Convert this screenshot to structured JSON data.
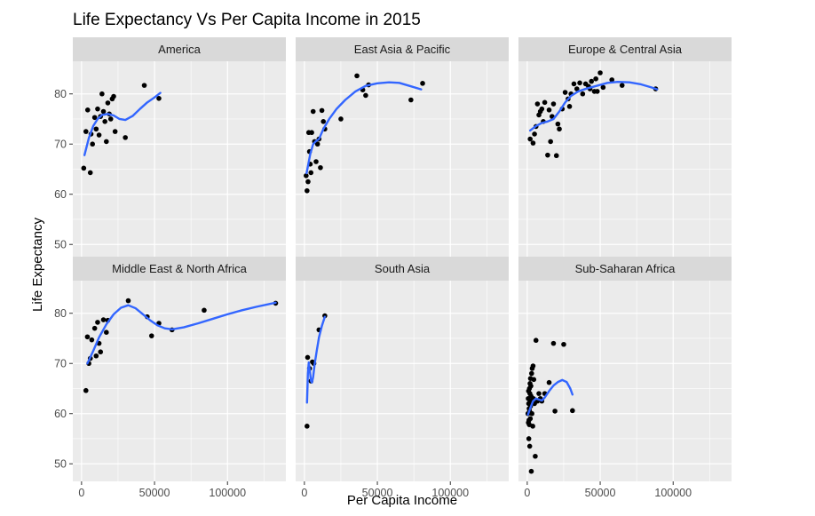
{
  "chart_data": {
    "type": "scatter",
    "title": "Life Expectancy Vs Per Capita Income in 2015",
    "xlabel": "Per Capita Income",
    "ylabel": "Life Expectancy",
    "xlim": [
      -6000,
      140000
    ],
    "ylim": [
      46.5,
      86.5
    ],
    "x_ticks": [
      0,
      50000,
      100000
    ],
    "x_tick_labels": [
      "0",
      "50000",
      "100000"
    ],
    "y_ticks": [
      50,
      60,
      70,
      80
    ],
    "y_tick_labels": [
      "50",
      "60",
      "70",
      "80"
    ],
    "grid": true,
    "smooth_color": "#3366ff",
    "point_color": "#000000",
    "panel_background": "#ebebeb",
    "strip_background": "#d9d9d9",
    "facets": [
      {
        "name": "America",
        "points": [
          [
            1500,
            65.2
          ],
          [
            3000,
            72.5
          ],
          [
            4200,
            76.8
          ],
          [
            6000,
            64.3
          ],
          [
            6500,
            72.0
          ],
          [
            7500,
            70.0
          ],
          [
            9000,
            75.3
          ],
          [
            10000,
            73.0
          ],
          [
            11000,
            77.0
          ],
          [
            12000,
            71.8
          ],
          [
            13000,
            75.5
          ],
          [
            14000,
            80.0
          ],
          [
            15000,
            76.5
          ],
          [
            16000,
            74.5
          ],
          [
            17000,
            70.5
          ],
          [
            18000,
            78.2
          ],
          [
            19000,
            76.0
          ],
          [
            20000,
            75.0
          ],
          [
            21000,
            79.0
          ],
          [
            22000,
            79.5
          ],
          [
            23000,
            72.5
          ],
          [
            30000,
            71.3
          ],
          [
            43000,
            81.7
          ],
          [
            53000,
            79.1
          ]
        ],
        "smooth": [
          [
            2000,
            67.8
          ],
          [
            5000,
            71.2
          ],
          [
            8000,
            73.6
          ],
          [
            11000,
            75.0
          ],
          [
            14000,
            75.8
          ],
          [
            18000,
            76.0
          ],
          [
            22000,
            75.7
          ],
          [
            26000,
            75.0
          ],
          [
            30000,
            74.8
          ],
          [
            35000,
            75.6
          ],
          [
            40000,
            77.0
          ],
          [
            45000,
            78.3
          ],
          [
            50000,
            79.3
          ],
          [
            54000,
            80.2
          ]
        ]
      },
      {
        "name": "East Asia & Pacific",
        "points": [
          [
            1200,
            63.7
          ],
          [
            1800,
            60.7
          ],
          [
            2500,
            62.5
          ],
          [
            3000,
            72.3
          ],
          [
            3500,
            68.5
          ],
          [
            4000,
            66.0
          ],
          [
            4500,
            64.3
          ],
          [
            5000,
            72.3
          ],
          [
            6000,
            76.5
          ],
          [
            7000,
            70.5
          ],
          [
            8000,
            66.5
          ],
          [
            9000,
            70.0
          ],
          [
            10000,
            71.0
          ],
          [
            11000,
            65.3
          ],
          [
            12000,
            76.7
          ],
          [
            13000,
            74.5
          ],
          [
            14000,
            73.0
          ],
          [
            25000,
            75.0
          ],
          [
            36000,
            83.6
          ],
          [
            40000,
            80.8
          ],
          [
            42000,
            79.7
          ],
          [
            44000,
            81.8
          ],
          [
            73000,
            78.8
          ],
          [
            81000,
            82.1
          ]
        ],
        "smooth": [
          [
            1500,
            64.2
          ],
          [
            4000,
            68.0
          ],
          [
            6000,
            70.0
          ],
          [
            8000,
            70.6
          ],
          [
            10000,
            71.0
          ],
          [
            13000,
            73.0
          ],
          [
            17000,
            75.0
          ],
          [
            22000,
            77.0
          ],
          [
            28000,
            78.8
          ],
          [
            35000,
            80.5
          ],
          [
            42000,
            81.6
          ],
          [
            50000,
            82.1
          ],
          [
            58000,
            82.3
          ],
          [
            65000,
            82.2
          ],
          [
            72000,
            81.6
          ],
          [
            80000,
            80.9
          ]
        ]
      },
      {
        "name": "Europe & Central Asia",
        "points": [
          [
            2000,
            71.0
          ],
          [
            4000,
            70.2
          ],
          [
            5000,
            72.0
          ],
          [
            6000,
            73.5
          ],
          [
            7000,
            78.0
          ],
          [
            8000,
            75.8
          ],
          [
            9000,
            76.5
          ],
          [
            10000,
            77.0
          ],
          [
            11000,
            74.5
          ],
          [
            12000,
            78.3
          ],
          [
            14000,
            67.8
          ],
          [
            15000,
            76.8
          ],
          [
            16000,
            70.5
          ],
          [
            17000,
            75.5
          ],
          [
            18000,
            78.0
          ],
          [
            20000,
            67.7
          ],
          [
            21000,
            74.0
          ],
          [
            22000,
            73.0
          ],
          [
            24000,
            77.0
          ],
          [
            26000,
            80.3
          ],
          [
            28000,
            79.0
          ],
          [
            29000,
            77.5
          ],
          [
            30000,
            80.0
          ],
          [
            32000,
            82.0
          ],
          [
            34000,
            81.0
          ],
          [
            36000,
            82.2
          ],
          [
            38000,
            80.0
          ],
          [
            40000,
            82.0
          ],
          [
            42000,
            81.5
          ],
          [
            43000,
            81.0
          ],
          [
            44000,
            82.5
          ],
          [
            46000,
            80.5
          ],
          [
            47000,
            83.0
          ],
          [
            48000,
            80.5
          ],
          [
            50000,
            84.2
          ],
          [
            52000,
            81.3
          ],
          [
            58000,
            82.8
          ],
          [
            65000,
            81.7
          ],
          [
            88000,
            81.0
          ]
        ],
        "smooth": [
          [
            2000,
            72.7
          ],
          [
            6000,
            73.6
          ],
          [
            10000,
            74.2
          ],
          [
            14000,
            74.5
          ],
          [
            18000,
            75.0
          ],
          [
            22000,
            76.5
          ],
          [
            26000,
            78.3
          ],
          [
            30000,
            79.6
          ],
          [
            35000,
            80.5
          ],
          [
            40000,
            81.0
          ],
          [
            45000,
            81.4
          ],
          [
            50000,
            81.8
          ],
          [
            55000,
            82.2
          ],
          [
            62000,
            82.4
          ],
          [
            70000,
            82.3
          ],
          [
            78000,
            81.9
          ],
          [
            85000,
            81.3
          ],
          [
            89000,
            80.9
          ]
        ]
      },
      {
        "name": "Middle East & North Africa",
        "points": [
          [
            3000,
            64.6
          ],
          [
            4000,
            75.3
          ],
          [
            5000,
            70.0
          ],
          [
            6000,
            71.0
          ],
          [
            7000,
            74.7
          ],
          [
            9000,
            77.0
          ],
          [
            10000,
            71.5
          ],
          [
            11000,
            78.2
          ],
          [
            12000,
            74.0
          ],
          [
            13000,
            72.3
          ],
          [
            15000,
            78.7
          ],
          [
            17000,
            76.2
          ],
          [
            18000,
            78.6
          ],
          [
            32000,
            82.5
          ],
          [
            45000,
            79.3
          ],
          [
            48000,
            75.5
          ],
          [
            53000,
            78.0
          ],
          [
            62000,
            76.7
          ],
          [
            84000,
            80.6
          ],
          [
            133000,
            82.0
          ]
        ],
        "smooth": [
          [
            4000,
            70.0
          ],
          [
            8000,
            72.5
          ],
          [
            12000,
            75.2
          ],
          [
            17000,
            77.8
          ],
          [
            22000,
            79.8
          ],
          [
            27000,
            81.1
          ],
          [
            32000,
            81.6
          ],
          [
            37000,
            81.0
          ],
          [
            42000,
            79.8
          ],
          [
            47000,
            78.6
          ],
          [
            52000,
            77.6
          ],
          [
            57000,
            77.0
          ],
          [
            62000,
            76.8
          ],
          [
            70000,
            77.2
          ],
          [
            80000,
            78.0
          ],
          [
            90000,
            78.9
          ],
          [
            100000,
            79.8
          ],
          [
            110000,
            80.6
          ],
          [
            120000,
            81.3
          ],
          [
            133000,
            82.1
          ]
        ]
      },
      {
        "name": "South Asia",
        "points": [
          [
            1800,
            57.5
          ],
          [
            2200,
            71.2
          ],
          [
            3500,
            69.0
          ],
          [
            4500,
            66.5
          ],
          [
            5500,
            70.3
          ],
          [
            6500,
            70.0
          ],
          [
            10000,
            76.7
          ],
          [
            14000,
            79.5
          ]
        ],
        "smooth": [
          [
            1800,
            62.2
          ],
          [
            2400,
            68.0
          ],
          [
            3000,
            70.2
          ],
          [
            3800,
            68.4
          ],
          [
            4500,
            66.5
          ],
          [
            5200,
            66.2
          ],
          [
            6000,
            67.3
          ],
          [
            7000,
            69.8
          ],
          [
            8500,
            72.6
          ],
          [
            10000,
            75.2
          ],
          [
            12000,
            77.5
          ],
          [
            14000,
            79.3
          ]
        ]
      },
      {
        "name": "Sub-Saharan Africa",
        "points": [
          [
            500,
            60.0
          ],
          [
            700,
            63.0
          ],
          [
            800,
            58.2
          ],
          [
            900,
            64.5
          ],
          [
            1000,
            62.0
          ],
          [
            1100,
            55.0
          ],
          [
            1200,
            58.7
          ],
          [
            1300,
            61.0
          ],
          [
            1400,
            57.8
          ],
          [
            1500,
            65.0
          ],
          [
            1600,
            60.5
          ],
          [
            1700,
            53.5
          ],
          [
            1800,
            64.0
          ],
          [
            1900,
            66.0
          ],
          [
            2000,
            62.5
          ],
          [
            2100,
            59.0
          ],
          [
            2200,
            67.0
          ],
          [
            2300,
            61.5
          ],
          [
            2500,
            65.5
          ],
          [
            2600,
            63.5
          ],
          [
            2800,
            48.5
          ],
          [
            3000,
            68.0
          ],
          [
            3200,
            60.0
          ],
          [
            3400,
            69.0
          ],
          [
            3600,
            62.3
          ],
          [
            3800,
            57.5
          ],
          [
            4000,
            69.5
          ],
          [
            4200,
            63.0
          ],
          [
            4500,
            66.8
          ],
          [
            5000,
            62.0
          ],
          [
            5500,
            51.5
          ],
          [
            6000,
            74.6
          ],
          [
            7000,
            62.5
          ],
          [
            8000,
            64.0
          ],
          [
            9000,
            63.0
          ],
          [
            10000,
            62.5
          ],
          [
            12000,
            64.0
          ],
          [
            15000,
            66.2
          ],
          [
            18000,
            74.0
          ],
          [
            19000,
            60.5
          ],
          [
            25000,
            73.8
          ],
          [
            31000,
            60.6
          ]
        ],
        "smooth": [
          [
            500,
            59.8
          ],
          [
            2000,
            61.0
          ],
          [
            4000,
            62.5
          ],
          [
            6000,
            63.0
          ],
          [
            8000,
            62.8
          ],
          [
            10000,
            62.6
          ],
          [
            12000,
            63.2
          ],
          [
            15000,
            64.5
          ],
          [
            18000,
            65.6
          ],
          [
            21000,
            66.3
          ],
          [
            24000,
            66.7
          ],
          [
            27000,
            66.3
          ],
          [
            29500,
            65.0
          ],
          [
            31000,
            63.8
          ]
        ]
      }
    ]
  }
}
